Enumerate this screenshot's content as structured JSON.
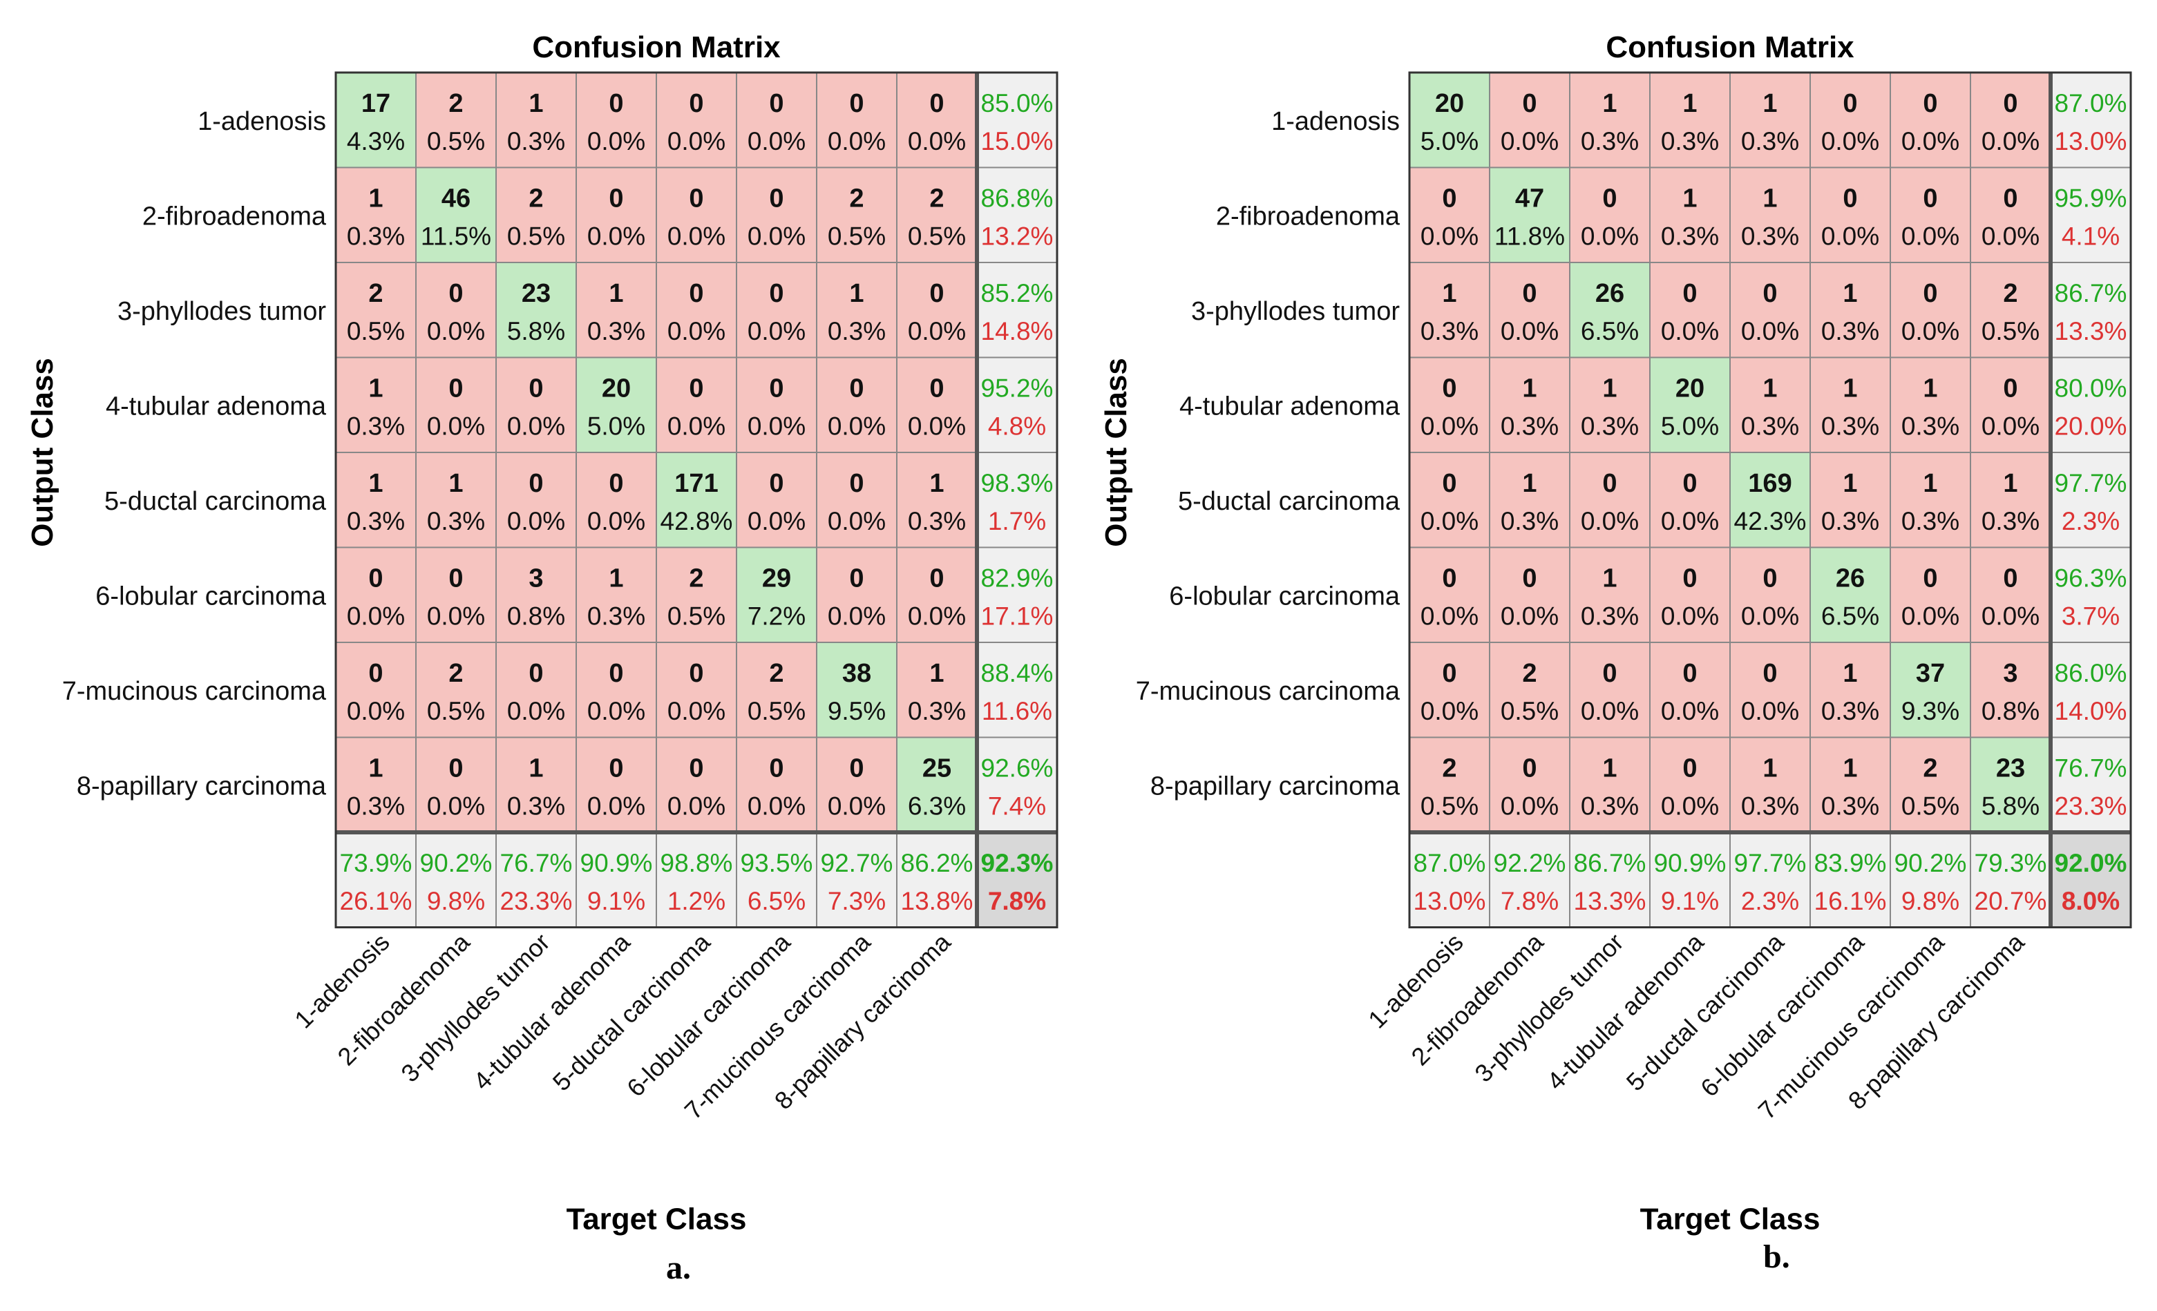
{
  "panels": [
    {
      "label": "a.",
      "chart_data": {
        "type": "heatmap",
        "title": "Confusion Matrix",
        "xlabel": "Target Class",
        "ylabel": "Output Class",
        "classes": [
          "1-adenosis",
          "2-fibroadenoma",
          "3-phyllodes tumor",
          "4-tubular adenoma",
          "5-ductal carcinoma",
          "6-lobular carcinoma",
          "7-mucinous carcinoma",
          "8-papillary carcinoma"
        ],
        "counts": [
          [
            17,
            2,
            1,
            0,
            0,
            0,
            0,
            0
          ],
          [
            1,
            46,
            2,
            0,
            0,
            0,
            2,
            2
          ],
          [
            2,
            0,
            23,
            1,
            0,
            0,
            1,
            0
          ],
          [
            1,
            0,
            0,
            20,
            0,
            0,
            0,
            0
          ],
          [
            1,
            1,
            0,
            0,
            171,
            0,
            0,
            1
          ],
          [
            0,
            0,
            3,
            1,
            2,
            29,
            0,
            0
          ],
          [
            0,
            2,
            0,
            0,
            0,
            2,
            38,
            1
          ],
          [
            1,
            0,
            1,
            0,
            0,
            0,
            0,
            25
          ]
        ],
        "percents": [
          [
            "4.3%",
            "0.5%",
            "0.3%",
            "0.0%",
            "0.0%",
            "0.0%",
            "0.0%",
            "0.0%"
          ],
          [
            "0.3%",
            "11.5%",
            "0.5%",
            "0.0%",
            "0.0%",
            "0.0%",
            "0.5%",
            "0.5%"
          ],
          [
            "0.5%",
            "0.0%",
            "5.8%",
            "0.3%",
            "0.0%",
            "0.0%",
            "0.3%",
            "0.0%"
          ],
          [
            "0.3%",
            "0.0%",
            "0.0%",
            "5.0%",
            "0.0%",
            "0.0%",
            "0.0%",
            "0.0%"
          ],
          [
            "0.3%",
            "0.3%",
            "0.0%",
            "0.0%",
            "42.8%",
            "0.0%",
            "0.0%",
            "0.3%"
          ],
          [
            "0.0%",
            "0.0%",
            "0.8%",
            "0.3%",
            "0.5%",
            "7.2%",
            "0.0%",
            "0.0%"
          ],
          [
            "0.0%",
            "0.5%",
            "0.0%",
            "0.0%",
            "0.0%",
            "0.5%",
            "9.5%",
            "0.3%"
          ],
          [
            "0.3%",
            "0.0%",
            "0.3%",
            "0.0%",
            "0.0%",
            "0.0%",
            "0.0%",
            "6.3%"
          ]
        ],
        "row_summary": [
          [
            "85.0%",
            "15.0%"
          ],
          [
            "86.8%",
            "13.2%"
          ],
          [
            "85.2%",
            "14.8%"
          ],
          [
            "95.2%",
            "4.8%"
          ],
          [
            "98.3%",
            "1.7%"
          ],
          [
            "82.9%",
            "17.1%"
          ],
          [
            "88.4%",
            "11.6%"
          ],
          [
            "92.6%",
            "7.4%"
          ]
        ],
        "col_summary": [
          [
            "73.9%",
            "26.1%"
          ],
          [
            "90.2%",
            "9.8%"
          ],
          [
            "76.7%",
            "23.3%"
          ],
          [
            "90.9%",
            "9.1%"
          ],
          [
            "98.8%",
            "1.2%"
          ],
          [
            "93.5%",
            "6.5%"
          ],
          [
            "92.7%",
            "7.3%"
          ],
          [
            "86.2%",
            "13.8%"
          ]
        ],
        "overall": [
          "92.3%",
          "7.8%"
        ]
      }
    },
    {
      "label": "b.",
      "chart_data": {
        "type": "heatmap",
        "title": "Confusion Matrix",
        "xlabel": "Target Class",
        "ylabel": "Output Class",
        "classes": [
          "1-adenosis",
          "2-fibroadenoma",
          "3-phyllodes tumor",
          "4-tubular adenoma",
          "5-ductal carcinoma",
          "6-lobular carcinoma",
          "7-mucinous carcinoma",
          "8-papillary carcinoma"
        ],
        "counts": [
          [
            20,
            0,
            1,
            1,
            1,
            0,
            0,
            0
          ],
          [
            0,
            47,
            0,
            1,
            1,
            0,
            0,
            0
          ],
          [
            1,
            0,
            26,
            0,
            0,
            1,
            0,
            2
          ],
          [
            0,
            1,
            1,
            20,
            1,
            1,
            1,
            0
          ],
          [
            0,
            1,
            0,
            0,
            169,
            1,
            1,
            1
          ],
          [
            0,
            0,
            1,
            0,
            0,
            26,
            0,
            0
          ],
          [
            0,
            2,
            0,
            0,
            0,
            1,
            37,
            3
          ],
          [
            2,
            0,
            1,
            0,
            1,
            1,
            2,
            23
          ]
        ],
        "percents": [
          [
            "5.0%",
            "0.0%",
            "0.3%",
            "0.3%",
            "0.3%",
            "0.0%",
            "0.0%",
            "0.0%"
          ],
          [
            "0.0%",
            "11.8%",
            "0.0%",
            "0.3%",
            "0.3%",
            "0.0%",
            "0.0%",
            "0.0%"
          ],
          [
            "0.3%",
            "0.0%",
            "6.5%",
            "0.0%",
            "0.0%",
            "0.3%",
            "0.0%",
            "0.5%"
          ],
          [
            "0.0%",
            "0.3%",
            "0.3%",
            "5.0%",
            "0.3%",
            "0.3%",
            "0.3%",
            "0.0%"
          ],
          [
            "0.0%",
            "0.3%",
            "0.0%",
            "0.0%",
            "42.3%",
            "0.3%",
            "0.3%",
            "0.3%"
          ],
          [
            "0.0%",
            "0.0%",
            "0.3%",
            "0.0%",
            "0.0%",
            "6.5%",
            "0.0%",
            "0.0%"
          ],
          [
            "0.0%",
            "0.5%",
            "0.0%",
            "0.0%",
            "0.0%",
            "0.3%",
            "9.3%",
            "0.8%"
          ],
          [
            "0.5%",
            "0.0%",
            "0.3%",
            "0.0%",
            "0.3%",
            "0.3%",
            "0.5%",
            "5.8%"
          ]
        ],
        "row_summary": [
          [
            "87.0%",
            "13.0%"
          ],
          [
            "95.9%",
            "4.1%"
          ],
          [
            "86.7%",
            "13.3%"
          ],
          [
            "80.0%",
            "20.0%"
          ],
          [
            "97.7%",
            "2.3%"
          ],
          [
            "96.3%",
            "3.7%"
          ],
          [
            "86.0%",
            "14.0%"
          ],
          [
            "76.7%",
            "23.3%"
          ]
        ],
        "col_summary": [
          [
            "87.0%",
            "13.0%"
          ],
          [
            "92.2%",
            "7.8%"
          ],
          [
            "86.7%",
            "13.3%"
          ],
          [
            "90.9%",
            "9.1%"
          ],
          [
            "97.7%",
            "2.3%"
          ],
          [
            "83.9%",
            "16.1%"
          ],
          [
            "90.2%",
            "9.8%"
          ],
          [
            "79.3%",
            "20.7%"
          ]
        ],
        "overall": [
          "92.0%",
          "8.0%"
        ]
      }
    }
  ],
  "colors": {
    "correct_cell": "#c3eac3",
    "wrong_cell": "#f6c4c0",
    "summary_cell": "#f0f0f0",
    "overall_cell": "#d8d8d8",
    "green_text": "#22aa22",
    "red_text": "#dd3333",
    "grid_line": "#888888"
  }
}
